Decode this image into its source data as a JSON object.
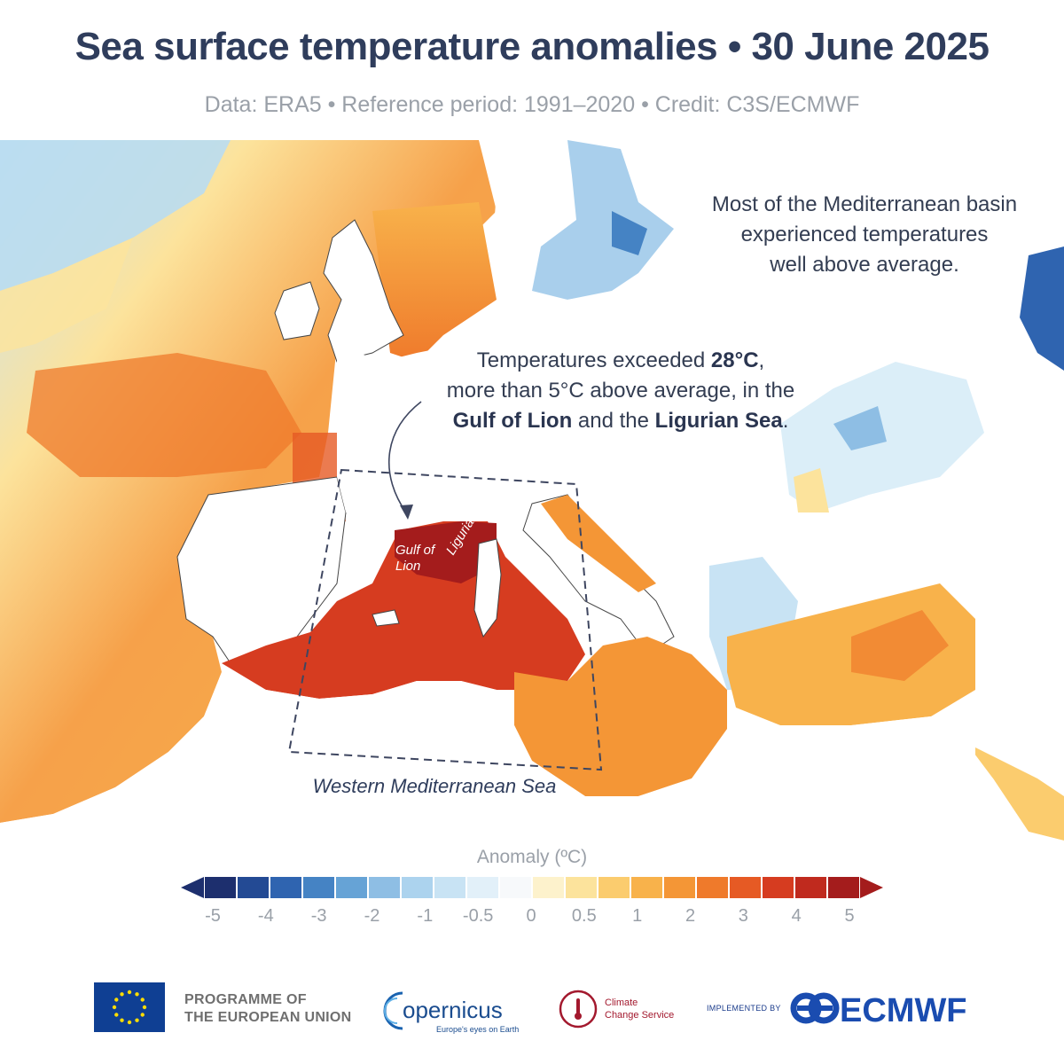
{
  "title": "Sea surface temperature anomalies • 30 June 2025",
  "subtitle": "Data: ERA5 • Reference period: 1991–2020 • Credit: C3S/ECMWF",
  "annotations": {
    "basin_line1": "Most of the Mediterranean basin",
    "basin_line2": "experienced temperatures",
    "basin_line3": "well above average.",
    "gulf_pre": "Temperatures exceeded ",
    "gulf_value": "28°C",
    "gulf_post": ",",
    "gulf_line2": "more than 5°C above average, in the",
    "gulf_name": "Gulf of Lion",
    "gulf_and": " and the ",
    "ligurian_name": "Ligurian Sea",
    "gulf_end": "."
  },
  "map_labels": {
    "gulf_of_lion": "Gulf of Lion",
    "ligurian_sea": "Ligurian Sea",
    "region": "Western Mediterranean Sea"
  },
  "legend": {
    "title": "Anomaly (ºC)",
    "ticks": [
      "-5",
      "-4",
      "-3",
      "-2",
      "-1",
      "-0.5",
      "0",
      "0.5",
      "1",
      "2",
      "3",
      "4",
      "5"
    ],
    "colors": [
      "#1d2f6e",
      "#234a94",
      "#2f64b0",
      "#4583c4",
      "#66a3d6",
      "#8ebee4",
      "#acd3ee",
      "#c8e3f4",
      "#e2f0f9",
      "#f7f9fb",
      "#fdf2cc",
      "#fce39c",
      "#fbcc6e",
      "#f8b24b",
      "#f49636",
      "#ef7a2b",
      "#e65a24",
      "#d63c20",
      "#c02a1e",
      "#a41c1c"
    ],
    "arrow_low": "#1d2f6e",
    "arrow_high": "#a41c1c"
  },
  "footer": {
    "eu_line1": "PROGRAMME OF",
    "eu_line2": "THE EUROPEAN UNION",
    "copernicus": "opernicus",
    "copernicus_tagline": "Europe's eyes on Earth",
    "c3s_line1": "Climate",
    "c3s_line2": "Change Service",
    "implemented_by": "IMPLEMENTED BY",
    "ecmwf": "ECMWF"
  }
}
